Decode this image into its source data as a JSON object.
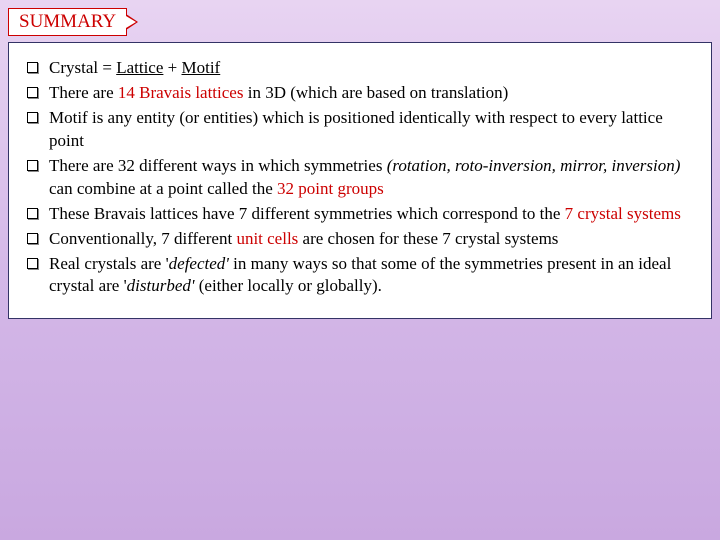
{
  "header": {
    "title": "SUMMARY"
  },
  "colors": {
    "accent_red": "#cc0000",
    "box_border": "#333366",
    "bg_gradient_top": "#e8d4f2",
    "bg_gradient_bottom": "#c9a8e0",
    "text": "#000000"
  },
  "bullets": {
    "b0": {
      "p0": "Crystal = ",
      "p1": "Lattice",
      "p2": " + ",
      "p3": "Motif"
    },
    "b1": {
      "p0": "There are ",
      "p1": "14 Bravais lattices",
      "p2": " in 3D (which are based on translation)"
    },
    "b2": {
      "p0": "Motif is any entity (or entities) which is positioned identically with respect to every lattice point"
    },
    "b3": {
      "p0": "There are 32 different ways in which symmetries ",
      "p1": "(rotation, roto-inversion, mirror, inversion)",
      "p2": " can combine at a point called the ",
      "p3": "32 point groups"
    },
    "b4": {
      "p0": "These Bravais lattices have 7 different symmetries which correspond to the ",
      "p1": "7 crystal systems"
    },
    "b5": {
      "p0": "Conventionally, 7 different ",
      "p1": "unit cells",
      "p2": " are chosen for these 7 crystal systems"
    },
    "b6": {
      "p0": "Real crystals are '",
      "p1": "defected'",
      "p2": " in many ways so that some of the symmetries present in an ideal crystal are '",
      "p3": "disturbed'",
      "p4": " (either locally or globally)."
    }
  }
}
